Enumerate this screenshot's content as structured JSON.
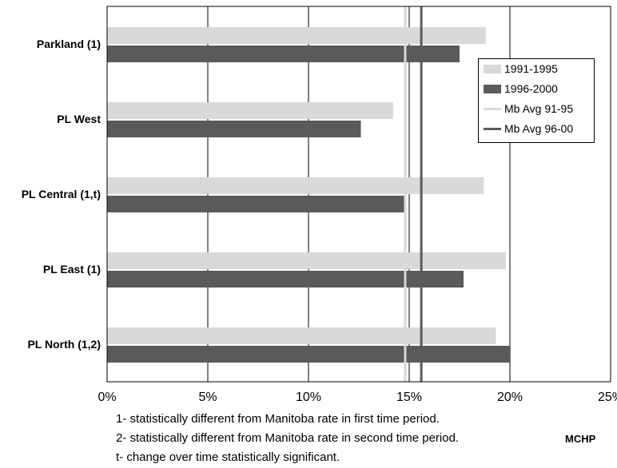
{
  "chart_data": {
    "type": "bar",
    "orientation": "horizontal",
    "categories": [
      "Parkland (1)",
      "PL West",
      "PL Central (1,t)",
      "PL East (1)",
      "PL North (1,2)"
    ],
    "series": [
      {
        "name": "1991-1995",
        "values": [
          18.8,
          14.2,
          18.7,
          19.8,
          19.3
        ],
        "color": "#d9d9d9"
      },
      {
        "name": "1996-2000",
        "values": [
          17.5,
          12.6,
          14.8,
          17.7,
          20.0
        ],
        "color": "#5a5a5a"
      }
    ],
    "reference_lines": [
      {
        "name": "Mb Avg 91-95",
        "value": 14.8,
        "color": "#d9d9d9"
      },
      {
        "name": "Mb Avg 96-00",
        "value": 15.6,
        "color": "#5a5a5a"
      }
    ],
    "x_ticks": [
      "0%",
      "5%",
      "10%",
      "15%",
      "20%",
      "25%"
    ],
    "xlim": [
      0,
      25
    ],
    "grid": true,
    "legend_position": "top-right"
  },
  "footnotes": [
    "1- statistically different from Manitoba rate in first time period.",
    "2- statistically different from Manitoba rate in second time period.",
    "t- change over time statistically significant."
  ],
  "source_label": "MCHP"
}
